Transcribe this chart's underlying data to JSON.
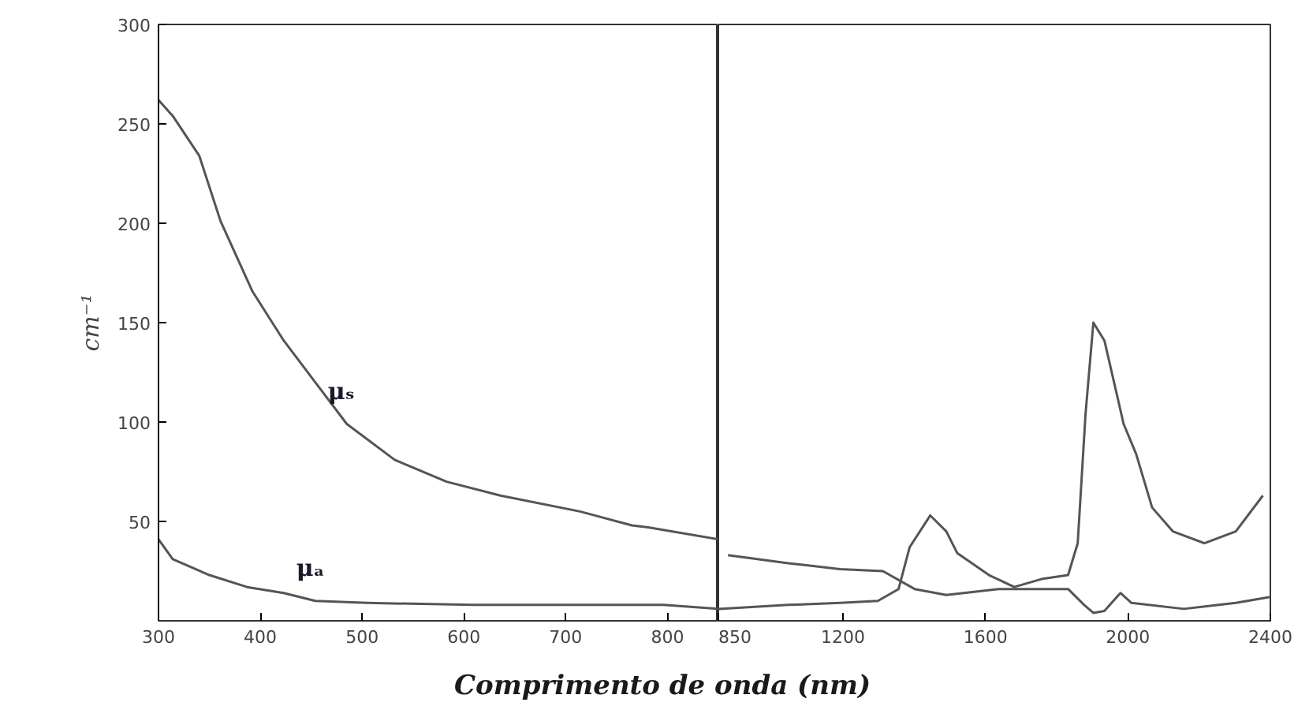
{
  "chart_data": [
    {
      "type": "line",
      "ylabel": "cm⁻¹",
      "xlabel": "Comprimento de onda (nm)",
      "xlim": [
        300,
        850
      ],
      "xticks": [
        300,
        400,
        500,
        600,
        700,
        800
      ],
      "ylim": [
        0,
        300
      ],
      "yticks": [
        50,
        100,
        150,
        200,
        250,
        300
      ],
      "grid": false,
      "series": [
        {
          "name": "μₛ",
          "color": "#555555",
          "x": [
            300,
            314,
            340,
            361,
            392,
            423,
            454,
            485,
            532,
            583,
            636,
            714,
            765,
            781,
            850
          ],
          "values": [
            262,
            254,
            234,
            201,
            166,
            141,
            120,
            99,
            81,
            70,
            63,
            55,
            48,
            47,
            41
          ]
        },
        {
          "name": "μₐ",
          "color": "#555555",
          "x": [
            300,
            314,
            350,
            387,
            423,
            454,
            505,
            609,
            796,
            850
          ],
          "values": [
            41,
            31,
            23,
            17,
            14,
            10,
            9,
            8,
            8,
            6
          ]
        }
      ]
    },
    {
      "type": "line",
      "xlim": [
        850,
        2400
      ],
      "xticks": [
        850,
        1200,
        1600,
        2000,
        2400
      ],
      "ylim": [
        0,
        300
      ],
      "tick_labels": "x",
      "grid": false,
      "series": [
        {
          "color": "#555555",
          "x": [
            877,
            1046,
            1192,
            1312,
            1401,
            1490,
            1637,
            1832,
            1877,
            1903,
            1934,
            1979,
            2010,
            2157,
            2303,
            2400
          ],
          "values": [
            33,
            29,
            26,
            25,
            16,
            13,
            16,
            16,
            8,
            4,
            5,
            14,
            9,
            6,
            9,
            12
          ]
        },
        {
          "color": "#555555",
          "x": [
            850,
            1046,
            1192,
            1298,
            1356,
            1387,
            1445,
            1490,
            1521,
            1610,
            1681,
            1757,
            1832,
            1859,
            1881,
            1903,
            1934,
            1988,
            2023,
            2068,
            2126,
            2215,
            2303,
            2379
          ],
          "values": [
            6,
            8,
            9,
            10,
            16,
            37,
            53,
            45,
            34,
            23,
            17,
            21,
            23,
            39,
            104,
            150,
            141,
            99,
            84,
            57,
            45,
            39,
            45,
            63
          ]
        }
      ]
    }
  ]
}
